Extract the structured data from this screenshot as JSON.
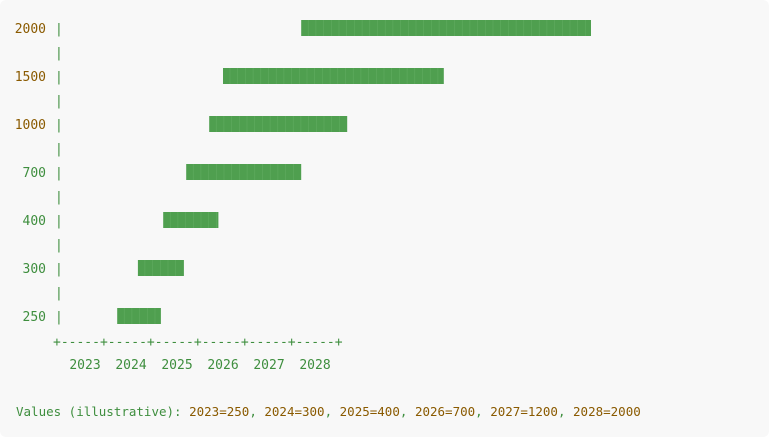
{
  "chart_data": {
    "type": "bar",
    "orientation": "horizontal",
    "title": "",
    "xlabel": "",
    "ylabel": "",
    "y_tick_labels": [
      "2000",
      "1500",
      "1000",
      "700",
      "400",
      "300",
      "250"
    ],
    "x_tick_labels": [
      "2023",
      "2024",
      "2025",
      "2026",
      "2027",
      "2028"
    ],
    "x_axis_text": "+-----+-----+-----+-----+-----+-----+",
    "separator_text": "|",
    "bars": [
      {
        "label": "2000",
        "start": 2027.7,
        "end": 2034.0
      },
      {
        "label": "1500",
        "start": 2026.0,
        "end": 2030.8
      },
      {
        "label": "1000",
        "start": 2025.7,
        "end": 2028.7
      },
      {
        "label": "700",
        "start": 2025.2,
        "end": 2027.7
      },
      {
        "label": "400",
        "start": 2024.7,
        "end": 2025.9
      },
      {
        "label": "300",
        "start": 2024.15,
        "end": 2025.15
      },
      {
        "label": "250",
        "start": 2023.7,
        "end": 2024.65
      }
    ],
    "colors": {
      "bar": "#4f9f4f",
      "bar_line": "#6fb86f",
      "y_label_highlight": "#8a5a00",
      "y_label": "#3e8e3e",
      "axis": "#3e8e3e"
    },
    "grid": false,
    "legend": "none"
  },
  "caption": {
    "prefix": "Values (illustrative): ",
    "items": [
      {
        "key": "2023",
        "value": "250"
      },
      {
        "key": "2024",
        "value": "300"
      },
      {
        "key": "2025",
        "value": "400"
      },
      {
        "key": "2026",
        "value": "700"
      },
      {
        "key": "2027",
        "value": "1200"
      },
      {
        "key": "2028",
        "value": "2000"
      }
    ]
  }
}
